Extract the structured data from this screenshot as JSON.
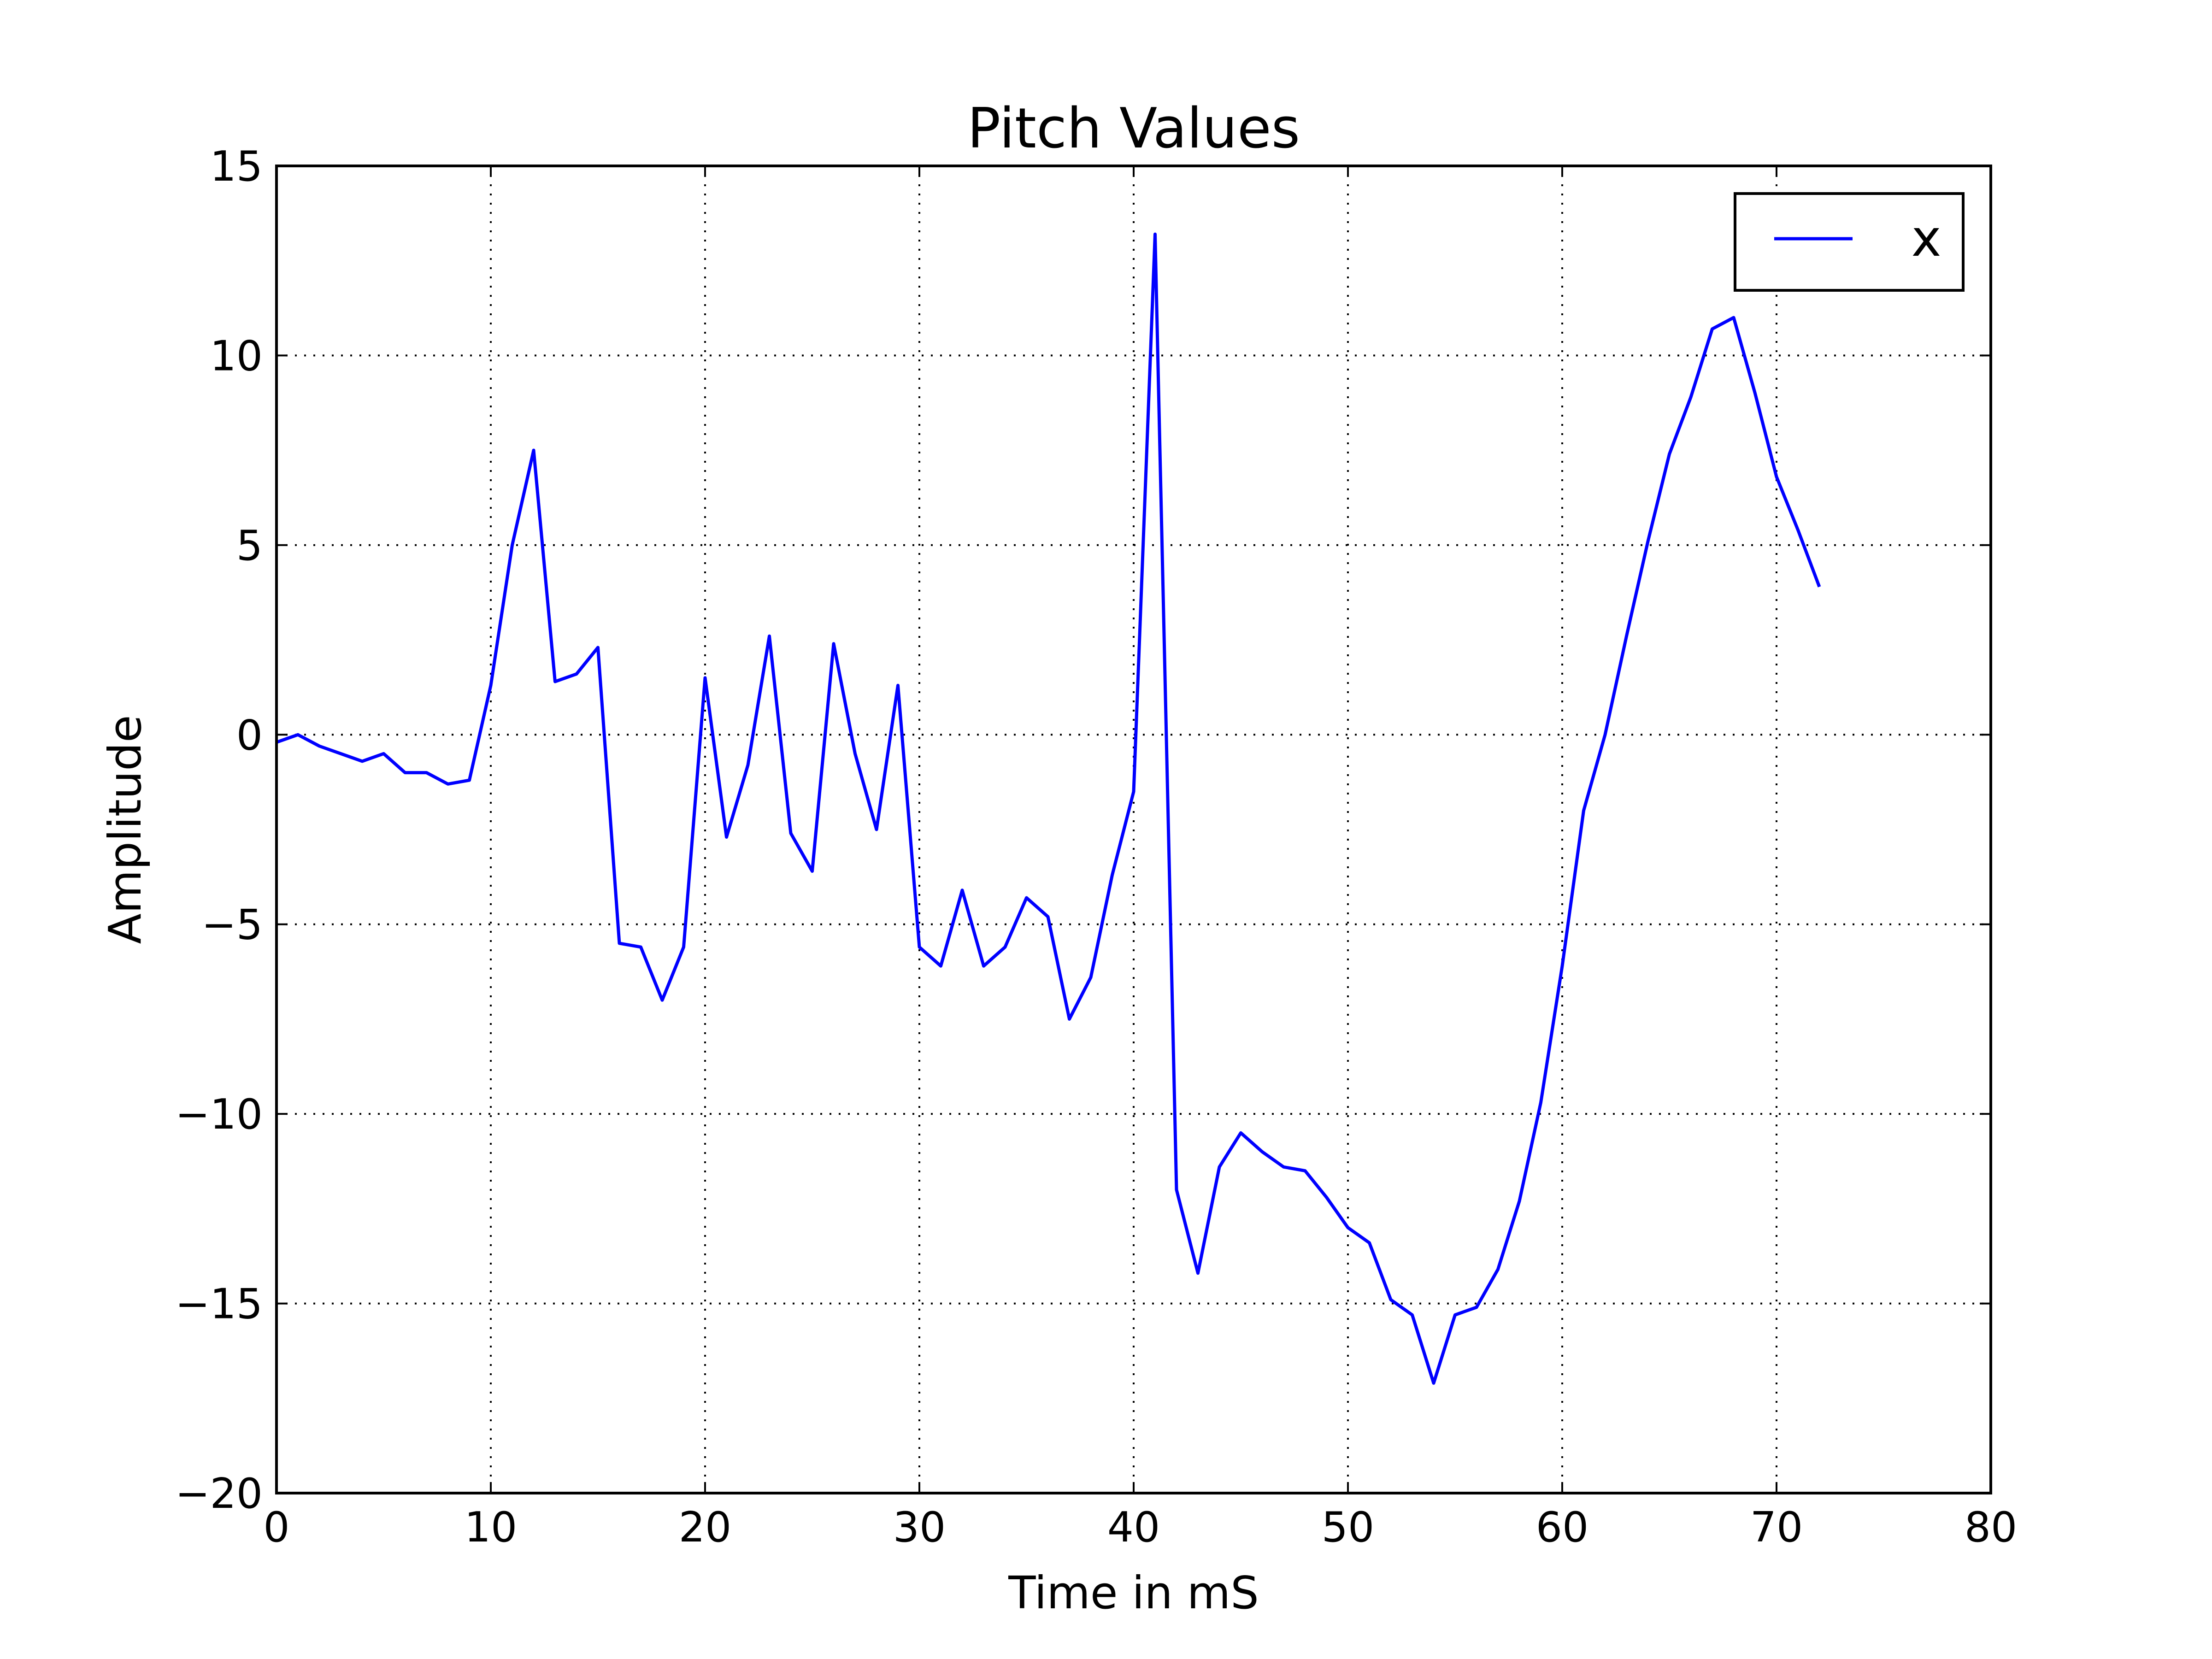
{
  "chart_data": {
    "type": "line",
    "title": "Pitch Values",
    "xlabel": "Time in mS",
    "ylabel": "Amplitude",
    "xlim": [
      0,
      80
    ],
    "ylim": [
      -20,
      15
    ],
    "xticks": [
      "0",
      "10",
      "20",
      "30",
      "40",
      "50",
      "60",
      "70",
      "80"
    ],
    "yticks": [
      "15",
      "10",
      "5",
      "0",
      "−5",
      "−10",
      "−15",
      "−20"
    ],
    "grid": true,
    "legend": {
      "position": "top-right"
    },
    "series": [
      {
        "name": "x",
        "color": "#0000ff",
        "x": [
          0,
          1,
          2,
          3,
          4,
          5,
          6,
          7,
          8,
          9,
          10,
          11,
          12,
          13,
          14,
          15,
          16,
          17,
          18,
          19,
          20,
          21,
          22,
          23,
          24,
          25,
          26,
          27,
          28,
          29,
          30,
          31,
          32,
          33,
          34,
          35,
          36,
          37,
          38,
          39,
          40,
          41,
          42,
          43,
          44,
          45,
          46,
          47,
          48,
          49,
          50,
          51,
          52,
          53,
          54,
          55,
          56,
          57,
          58,
          59,
          60,
          61,
          62,
          63,
          64,
          65,
          66,
          67,
          68,
          69,
          70,
          71,
          72
        ],
        "y": [
          -0.2,
          0.0,
          -0.3,
          -0.5,
          -0.7,
          -0.5,
          -1.0,
          -1.0,
          -1.3,
          -1.2,
          1.3,
          5.0,
          7.5,
          1.4,
          1.6,
          2.3,
          -5.5,
          -5.6,
          -7.0,
          -5.6,
          1.5,
          -2.7,
          -0.8,
          2.6,
          -2.6,
          -3.6,
          2.4,
          -0.5,
          -2.5,
          1.3,
          -5.6,
          -6.1,
          -4.1,
          -6.1,
          -5.6,
          -4.3,
          -4.8,
          -7.5,
          -6.4,
          -3.7,
          -1.5,
          13.2,
          -12.0,
          -14.2,
          -11.4,
          -10.5,
          -11.0,
          -11.4,
          -11.5,
          -12.2,
          -13.0,
          -13.4,
          -14.9,
          -15.3,
          -17.1,
          -15.3,
          -15.1,
          -14.1,
          -12.3,
          -9.7,
          -6.1,
          -2.0,
          0.0,
          2.6,
          5.1,
          7.4,
          8.9,
          10.7,
          11.0,
          9.0,
          6.8,
          5.4,
          3.9
        ]
      }
    ]
  }
}
